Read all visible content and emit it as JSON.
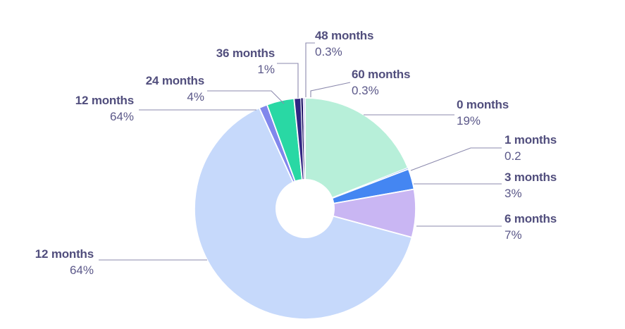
{
  "colors": {
    "label_text": "#514e7d",
    "value_text": "#5b5889",
    "leader_line": "#8b89ad",
    "background": "#ffffff",
    "slice_gap": "#ffffff"
  },
  "chart_data": {
    "type": "pie",
    "subtype": "donut",
    "title": "",
    "legend": "none",
    "label_style": "external callouts with leader lines",
    "slices": [
      {
        "label": "0 months",
        "value": 19,
        "display": "19%",
        "color": "#b7efd9"
      },
      {
        "label": "1 months",
        "value": 0.2,
        "display": "0.2",
        "color": "#8fb7f3"
      },
      {
        "label": "3 months",
        "value": 3,
        "display": "3%",
        "color": "#4486f2"
      },
      {
        "label": "6 months",
        "value": 7,
        "display": "7%",
        "color": "#c9b6f3"
      },
      {
        "label": "12 months",
        "value": 64,
        "display": "64%",
        "color": "#c6d9fb"
      },
      {
        "label": "",
        "value": 1.2,
        "display": "",
        "color": "#8187ec"
      },
      {
        "label": "24 months",
        "value": 4,
        "display": "4%",
        "color": "#29d8a4"
      },
      {
        "label": "36 months",
        "value": 1,
        "display": "1%",
        "color": "#302683"
      },
      {
        "label": "48 months",
        "value": 0.3,
        "display": "0.3%",
        "color": "#1b1363"
      },
      {
        "label": "60 months",
        "value": 0.3,
        "display": "0.3%",
        "color": "#dcd7f6"
      }
    ],
    "callouts": [
      {
        "label": "12 months",
        "value": "64%"
      },
      {
        "label": "24 months",
        "value": "4%"
      },
      {
        "label": "36 months",
        "value": "1%"
      },
      {
        "label": "48 months",
        "value": "0.3%"
      },
      {
        "label": "60 months",
        "value": "0.3%"
      },
      {
        "label": "0 months",
        "value": "19%"
      },
      {
        "label": "1 months",
        "value": "0.2"
      },
      {
        "label": "3 months",
        "value": "3%"
      },
      {
        "label": "6 months",
        "value": "7%"
      },
      {
        "label": "12 months",
        "value": "64%"
      }
    ]
  }
}
